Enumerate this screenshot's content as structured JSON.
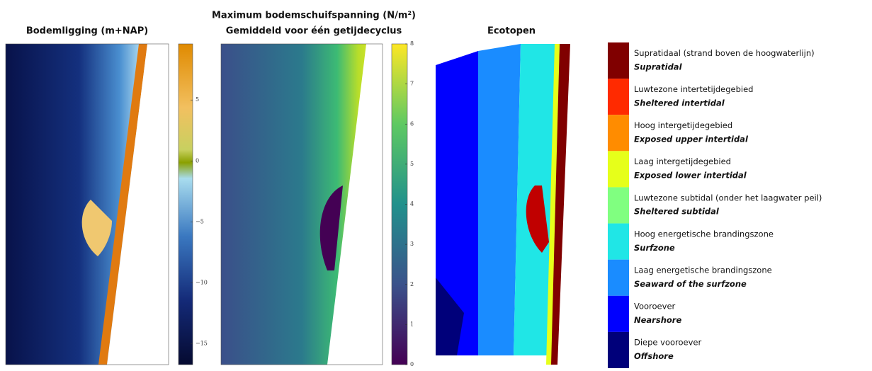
{
  "panels": [
    {
      "title": [
        "Bodemligging (m+NAP)"
      ],
      "colorbar": {
        "range": [
          -16.7,
          9.6
        ],
        "ticks": [
          5,
          0,
          {
            "value": -5,
            "label": "−5"
          },
          {
            "value": -10,
            "label": "−10"
          },
          {
            "value": -15,
            "label": "−15"
          }
        ]
      }
    },
    {
      "title": [
        "Maximum bodemschuifspanning (N/m²)",
        "Gemiddeld voor één getijdecyclus"
      ],
      "colorbar": {
        "range": [
          0,
          8
        ],
        "ticks": [
          8,
          7,
          6,
          5,
          4,
          3,
          2,
          1,
          0
        ]
      }
    },
    {
      "title": [
        "Ecotopen"
      ]
    }
  ],
  "legend": [
    {
      "name": "Supratidaal (strand boven de hoogwaterlijn)",
      "name_en": "Supratidal",
      "color": "#800000"
    },
    {
      "name": "Luwtezone intertetijdegebied",
      "name_en": "Sheltered intertidal",
      "color": "#ff2a00"
    },
    {
      "name": "Hoog intergetijdegebied",
      "name_en": "Exposed upper intertidal",
      "color": "#ff8c00"
    },
    {
      "name": "Laag intergetijdegebied",
      "name_en": "Exposed lower intertidal",
      "color": "#e6ff1a"
    },
    {
      "name": "Luwtezone subtidal (onder het laagwater peil)",
      "name_en": "Sheltered subtidal",
      "color": "#80ff80"
    },
    {
      "name": "Hoog energetische brandingszone",
      "name_en": "Surfzone",
      "color": "#20e6e6"
    },
    {
      "name": "Laag energetische brandingszone",
      "name_en": "Seaward of the surfzone",
      "color": "#1a8cff"
    },
    {
      "name": "Vooroever",
      "name_en": "Nearshore",
      "color": "#0000ff"
    },
    {
      "name": "Diepe vooroever",
      "name_en": "Offshore",
      "color": "#00007a"
    }
  ]
}
